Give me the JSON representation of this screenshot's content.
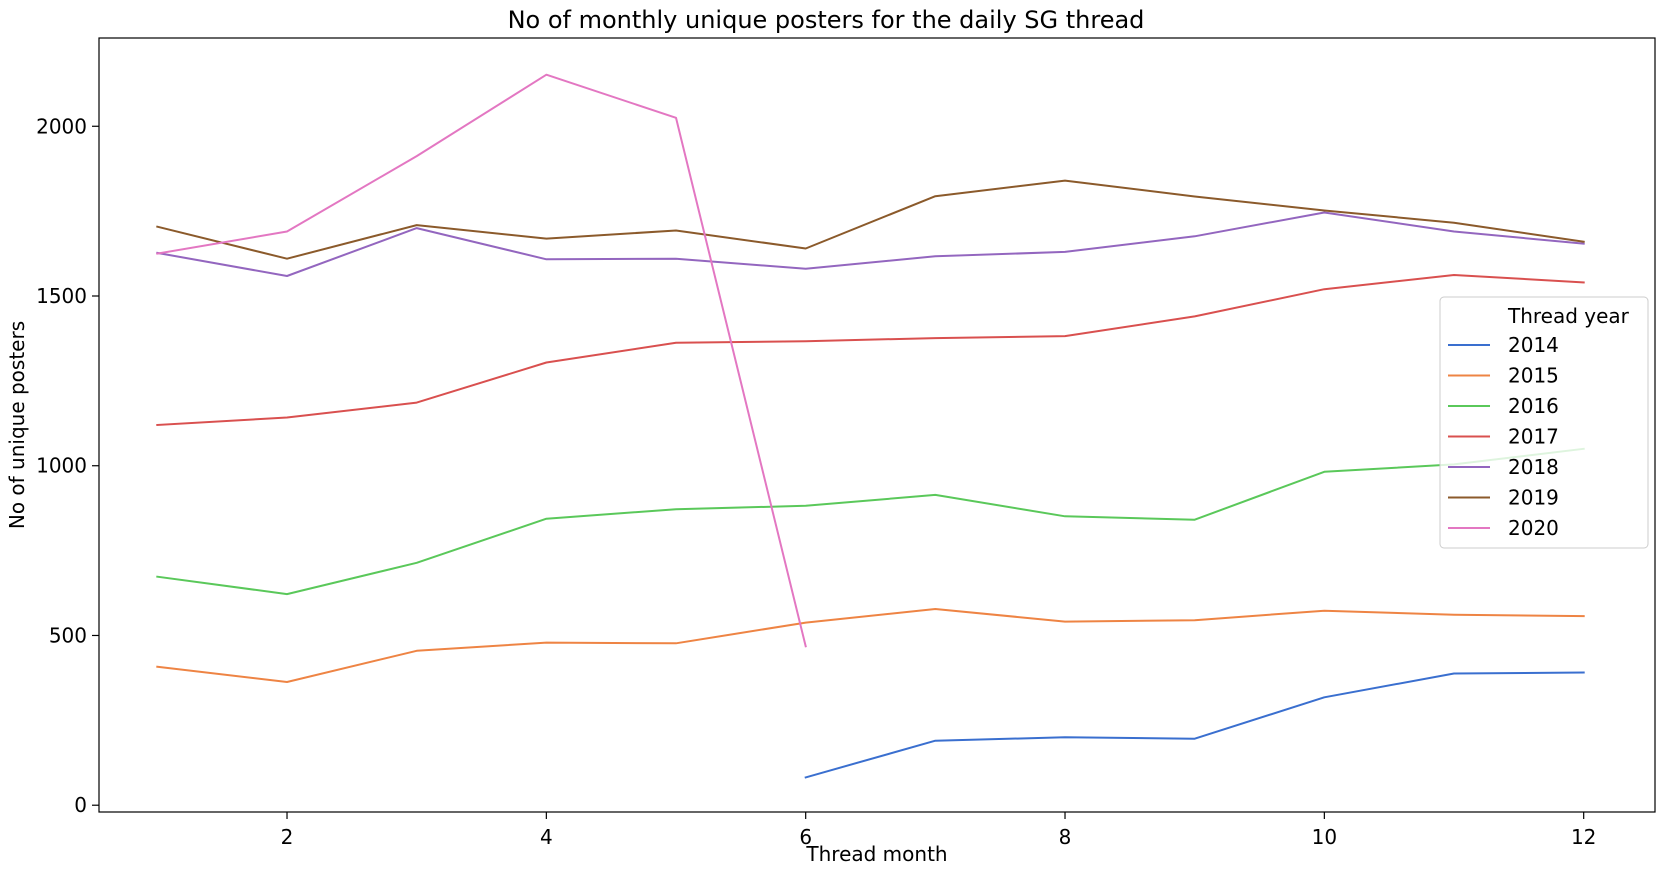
{
  "chart_data": {
    "type": "line",
    "title": "No of monthly unique posters for the daily SG thread",
    "xlabel": "Thread month",
    "ylabel": "No of unique posters",
    "xlim": [
      0.55,
      12.55
    ],
    "ylim": [
      -20,
      2260
    ],
    "xticks": [
      2,
      4,
      6,
      8,
      10,
      12
    ],
    "yticks": [
      0,
      500,
      1000,
      1500,
      2000
    ],
    "grid": false,
    "legend": {
      "title": "Thread year",
      "placement": "right"
    },
    "series": [
      {
        "name": "2014",
        "color": "#3a6fcf",
        "x": [
          6,
          7,
          8,
          9,
          10,
          11,
          12
        ],
        "values": [
          82,
          190,
          200,
          196,
          318,
          388,
          391
        ]
      },
      {
        "name": "2015",
        "color": "#ee8444",
        "x": [
          1,
          2,
          3,
          4,
          5,
          6,
          7,
          8,
          9,
          10,
          11,
          12
        ],
        "values": [
          408,
          363,
          455,
          479,
          477,
          538,
          578,
          541,
          545,
          573,
          561,
          557
        ]
      },
      {
        "name": "2016",
        "color": "#5ac85a",
        "x": [
          1,
          2,
          3,
          4,
          5,
          6,
          7,
          8,
          9,
          10,
          11,
          12
        ],
        "values": [
          673,
          622,
          714,
          844,
          872,
          882,
          914,
          851,
          841,
          982,
          1004,
          1050
        ]
      },
      {
        "name": "2017",
        "color": "#d9504f",
        "x": [
          1,
          2,
          3,
          4,
          5,
          6,
          7,
          8,
          9,
          10,
          11,
          12
        ],
        "values": [
          1120,
          1142,
          1186,
          1304,
          1362,
          1367,
          1376,
          1382,
          1440,
          1520,
          1562,
          1540
        ]
      },
      {
        "name": "2018",
        "color": "#9366bf",
        "x": [
          1,
          2,
          3,
          4,
          5,
          6,
          7,
          8,
          9,
          10,
          11,
          12
        ],
        "values": [
          1627,
          1559,
          1700,
          1608,
          1610,
          1580,
          1617,
          1630,
          1676,
          1746,
          1690,
          1654
        ]
      },
      {
        "name": "2019",
        "color": "#8b5a2b",
        "x": [
          1,
          2,
          3,
          4,
          5,
          6,
          7,
          8,
          9,
          10,
          11,
          12
        ],
        "values": [
          1704,
          1610,
          1709,
          1669,
          1693,
          1640,
          1794,
          1840,
          1793,
          1752,
          1716,
          1660
        ]
      },
      {
        "name": "2020",
        "color": "#e377c2",
        "x": [
          1,
          2,
          3,
          4,
          5,
          6
        ],
        "values": [
          1625,
          1690,
          1912,
          2152,
          2025,
          468
        ]
      }
    ]
  }
}
